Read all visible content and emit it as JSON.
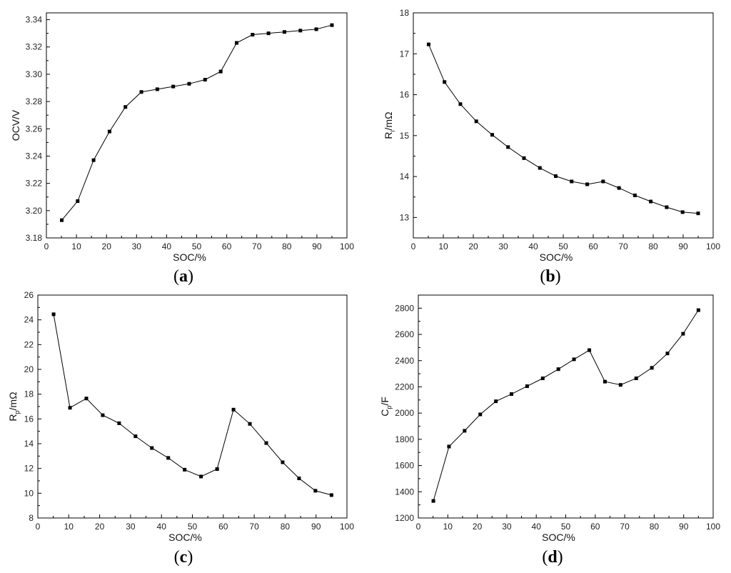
{
  "chart_data": [
    {
      "type": "line",
      "panel_label": "a",
      "xlabel": "SOC/%",
      "ylabel": "OCV/V",
      "ylabel_main": "OCV/V",
      "ylabel_sub": "",
      "ylabel_tail": "",
      "xlim": [
        0,
        100
      ],
      "ylim": [
        3.18,
        3.345
      ],
      "xticks": [
        0,
        10,
        20,
        30,
        40,
        50,
        60,
        70,
        80,
        90,
        100
      ],
      "yticks": [
        3.18,
        3.2,
        3.22,
        3.24,
        3.26,
        3.28,
        3.3,
        3.32,
        3.34
      ],
      "ytick_labels": [
        "3.18",
        "3.20",
        "3.22",
        "3.24",
        "3.26",
        "3.28",
        "3.30",
        "3.32",
        "3.34"
      ],
      "x": [
        5.1,
        10.4,
        15.7,
        21.0,
        26.3,
        31.6,
        36.9,
        42.2,
        47.5,
        52.8,
        58.0,
        63.3,
        68.6,
        73.9,
        79.2,
        84.5,
        89.8,
        95.0
      ],
      "y": [
        3.193,
        3.207,
        3.237,
        3.258,
        3.276,
        3.287,
        3.289,
        3.291,
        3.293,
        3.296,
        3.302,
        3.323,
        3.329,
        3.33,
        3.331,
        3.332,
        3.333,
        3.336
      ]
    },
    {
      "type": "line",
      "panel_label": "b",
      "xlabel": "SOC/%",
      "ylabel": "Ri/mΩ",
      "ylabel_main": "R",
      "ylabel_sub": "i",
      "ylabel_tail": "/mΩ",
      "xlim": [
        0,
        100
      ],
      "ylim": [
        12.5,
        18
      ],
      "xticks": [
        0,
        10,
        20,
        30,
        40,
        50,
        60,
        70,
        80,
        90,
        100
      ],
      "yticks": [
        13,
        14,
        15,
        16,
        17,
        18
      ],
      "ytick_labels": [
        "13",
        "14",
        "15",
        "16",
        "17",
        "18"
      ],
      "x": [
        5.1,
        10.4,
        15.7,
        21.0,
        26.3,
        31.6,
        36.9,
        42.2,
        47.5,
        52.8,
        58.0,
        63.3,
        68.6,
        73.9,
        79.2,
        84.5,
        89.8,
        95.0
      ],
      "y": [
        17.23,
        16.31,
        15.77,
        15.35,
        15.02,
        14.72,
        14.45,
        14.21,
        14.01,
        13.88,
        13.81,
        13.88,
        13.72,
        13.54,
        13.39,
        13.25,
        13.13,
        13.1
      ]
    },
    {
      "type": "line",
      "panel_label": "c",
      "xlabel": "SOC/%",
      "ylabel": "Rp/mΩ",
      "ylabel_main": "R",
      "ylabel_sub": "p",
      "ylabel_tail": "/mΩ",
      "xlim": [
        0,
        100
      ],
      "ylim": [
        8,
        26
      ],
      "xticks": [
        0,
        10,
        20,
        30,
        40,
        50,
        60,
        70,
        80,
        90,
        100
      ],
      "yticks": [
        8,
        10,
        12,
        14,
        16,
        18,
        20,
        22,
        24,
        26
      ],
      "ytick_labels": [
        "8",
        "10",
        "12",
        "14",
        "16",
        "18",
        "20",
        "22",
        "24",
        "26"
      ],
      "x": [
        5.1,
        10.4,
        15.7,
        21.0,
        26.3,
        31.6,
        36.9,
        42.2,
        47.5,
        52.8,
        58.0,
        63.3,
        68.6,
        73.9,
        79.2,
        84.5,
        89.8,
        95.0
      ],
      "y": [
        24.45,
        16.9,
        17.65,
        16.3,
        15.65,
        14.6,
        13.65,
        12.85,
        11.9,
        11.35,
        11.95,
        16.75,
        15.6,
        14.05,
        12.5,
        11.2,
        10.2,
        9.85
      ]
    },
    {
      "type": "line",
      "panel_label": "d",
      "xlabel": "SOC/%",
      "ylabel": "Cp/F",
      "ylabel_main": "C",
      "ylabel_sub": "p",
      "ylabel_tail": "/F",
      "xlim": [
        0,
        100
      ],
      "ylim": [
        1200,
        2900
      ],
      "xticks": [
        0,
        10,
        20,
        30,
        40,
        50,
        60,
        70,
        80,
        90,
        100
      ],
      "yticks": [
        1200,
        1400,
        1600,
        1800,
        2000,
        2200,
        2400,
        2600,
        2800
      ],
      "ytick_labels": [
        "1200",
        "1400",
        "1600",
        "1800",
        "2000",
        "2200",
        "2400",
        "2600",
        "2800"
      ],
      "x": [
        5.1,
        10.4,
        15.7,
        21.0,
        26.3,
        31.6,
        36.9,
        42.2,
        47.5,
        52.8,
        58.0,
        63.3,
        68.6,
        73.9,
        79.2,
        84.5,
        89.8,
        95.0
      ],
      "y": [
        1330,
        1745,
        1865,
        1990,
        2090,
        2145,
        2205,
        2265,
        2335,
        2410,
        2480,
        2240,
        2215,
        2265,
        2345,
        2455,
        2605,
        2785
      ]
    }
  ]
}
